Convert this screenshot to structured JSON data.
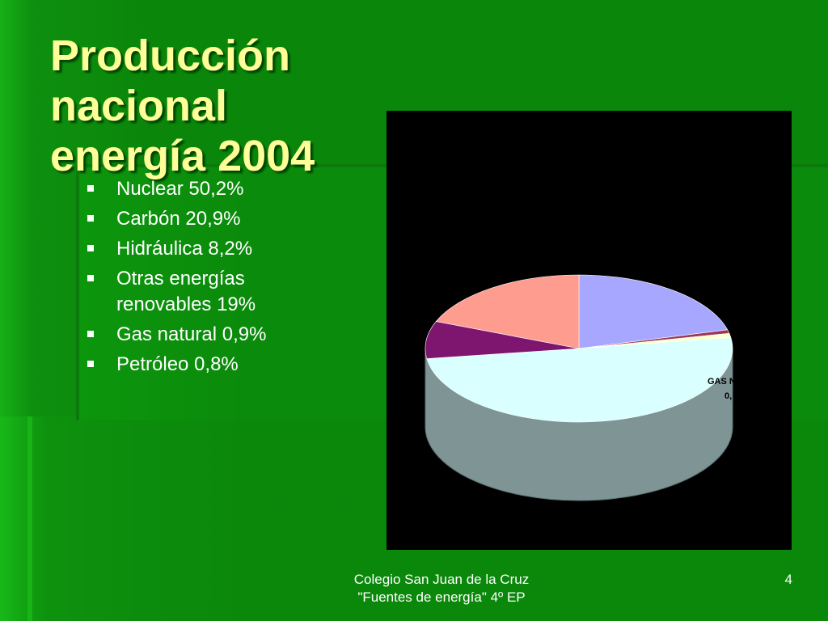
{
  "slide": {
    "title_line1": "Producción nacional",
    "title_line2": "energía 2004",
    "bullets": [
      "Nuclear 50,2%",
      "Carbón 20,9%",
      "Hidráulica 8,2%",
      "Otras energías renovables 19%",
      "Gas natural 0,9%",
      "Petróleo 0,8%"
    ],
    "footer_line1": "Colegio San Juan de la Cruz",
    "footer_line2": "\"Fuentes de energía\" 4º EP",
    "page_number": "4"
  },
  "chart_data": {
    "type": "pie",
    "three_d": true,
    "background": "#000000",
    "slices": [
      {
        "category": "Nuclear",
        "value": 50.2,
        "color": "#d9ffff"
      },
      {
        "category": "Carbón",
        "value": 20.9,
        "color": "#a7a7ff"
      },
      {
        "category": "Hidráulica",
        "value": 8.2,
        "color": "#7e1670"
      },
      {
        "category": "Otras energías renovables",
        "value": 19,
        "color": "#ff9c90"
      },
      {
        "category": "Gas natural",
        "value": 0.9,
        "color": "#ffffcc"
      },
      {
        "category": "Petróleo",
        "value": 0.8,
        "color": "#9a3a5a"
      }
    ],
    "side_color": "#7f9595",
    "visible_label_fragment_1": "GAS NA",
    "visible_label_fragment_2": "0,"
  }
}
